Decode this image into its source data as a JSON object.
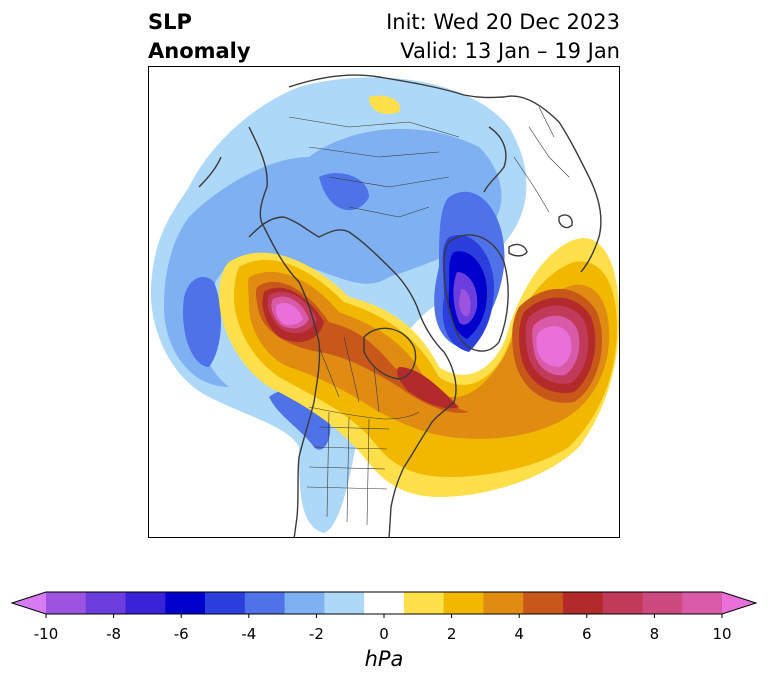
{
  "title": {
    "left_line1": "SLP",
    "left_line2": "Anomaly",
    "init": "Init: Wed 20 Dec 2023",
    "valid": "Valid: 13 Jan – 19 Jan"
  },
  "colorbar": {
    "unit": "hPa",
    "ticks": [
      -10,
      -8,
      -6,
      -4,
      -2,
      0,
      2,
      4,
      6,
      8,
      10
    ],
    "tick_labels": [
      "-10",
      "-8",
      "-6",
      "-4",
      "-2",
      "0",
      "2",
      "4",
      "6",
      "8",
      "10"
    ],
    "colors": [
      "#d67cf0",
      "#9c54e0",
      "#6a3ddc",
      "#3a22d8",
      "#0000cc",
      "#2a3fdc",
      "#4f72e8",
      "#7eb0f2",
      "#add8f8",
      "#ffffff",
      "#ffe04a",
      "#f2b800",
      "#e08c12",
      "#c8581a",
      "#b22a2a",
      "#c23a5a",
      "#cc4a7e",
      "#d85aa8",
      "#e870d8"
    ]
  },
  "colors": {
    "coastline": "#3a3a3a"
  }
}
